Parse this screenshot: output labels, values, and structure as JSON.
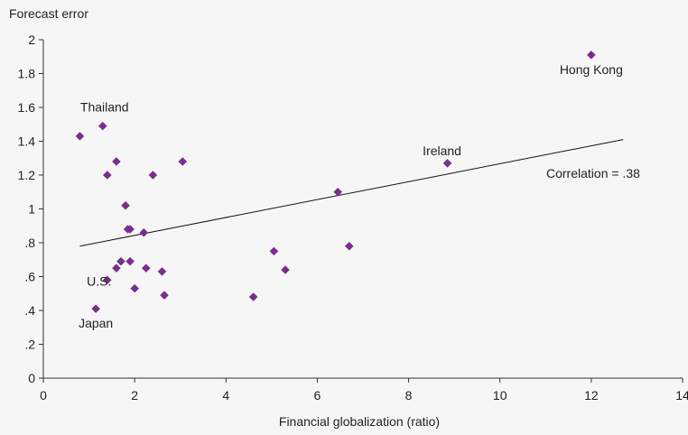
{
  "chart_data": {
    "type": "scatter",
    "ylabel": "Forecast error",
    "xlabel": "Financial globalization (ratio)",
    "xlim": [
      0,
      14
    ],
    "ylim": [
      0,
      2
    ],
    "x_ticks": [
      0,
      2,
      4,
      6,
      8,
      10,
      12,
      14
    ],
    "y_ticks": [
      {
        "value": 0,
        "label": "0"
      },
      {
        "value": 0.2,
        "label": ".2"
      },
      {
        "value": 0.4,
        "label": ".4"
      },
      {
        "value": 0.6,
        "label": ".6"
      },
      {
        "value": 0.8,
        "label": ".8"
      },
      {
        "value": 1.0,
        "label": "1"
      },
      {
        "value": 1.2,
        "label": "1.2"
      },
      {
        "value": 1.4,
        "label": "1.4"
      },
      {
        "value": 1.6,
        "label": "1.6"
      },
      {
        "value": 1.8,
        "label": "1.8"
      },
      {
        "value": 2.0,
        "label": "2"
      }
    ],
    "grid": false,
    "marker_color": "#7b2c8f",
    "points": [
      {
        "x": 0.8,
        "y": 1.43
      },
      {
        "x": 1.3,
        "y": 1.49,
        "label": "Thailand"
      },
      {
        "x": 1.4,
        "y": 1.2
      },
      {
        "x": 1.6,
        "y": 1.28
      },
      {
        "x": 1.8,
        "y": 1.02
      },
      {
        "x": 1.85,
        "y": 0.88
      },
      {
        "x": 1.9,
        "y": 0.88
      },
      {
        "x": 2.2,
        "y": 0.86
      },
      {
        "x": 2.4,
        "y": 1.2
      },
      {
        "x": 3.05,
        "y": 1.28
      },
      {
        "x": 1.7,
        "y": 0.69
      },
      {
        "x": 1.9,
        "y": 0.69
      },
      {
        "x": 1.6,
        "y": 0.65
      },
      {
        "x": 1.4,
        "y": 0.58,
        "label": "U.S."
      },
      {
        "x": 2.0,
        "y": 0.53
      },
      {
        "x": 2.25,
        "y": 0.65
      },
      {
        "x": 2.6,
        "y": 0.63
      },
      {
        "x": 2.65,
        "y": 0.49
      },
      {
        "x": 1.15,
        "y": 0.41,
        "label": "Japan"
      },
      {
        "x": 4.6,
        "y": 0.48
      },
      {
        "x": 5.05,
        "y": 0.75
      },
      {
        "x": 5.3,
        "y": 0.64
      },
      {
        "x": 6.45,
        "y": 1.1
      },
      {
        "x": 6.7,
        "y": 0.78
      },
      {
        "x": 8.85,
        "y": 1.27,
        "label": "Ireland"
      },
      {
        "x": 12.0,
        "y": 1.91,
        "label": "Hong Kong"
      }
    ],
    "trendline": {
      "x1": 0.8,
      "y1": 0.78,
      "x2": 12.7,
      "y2": 1.41
    },
    "annotation": "Correlation = .38"
  }
}
